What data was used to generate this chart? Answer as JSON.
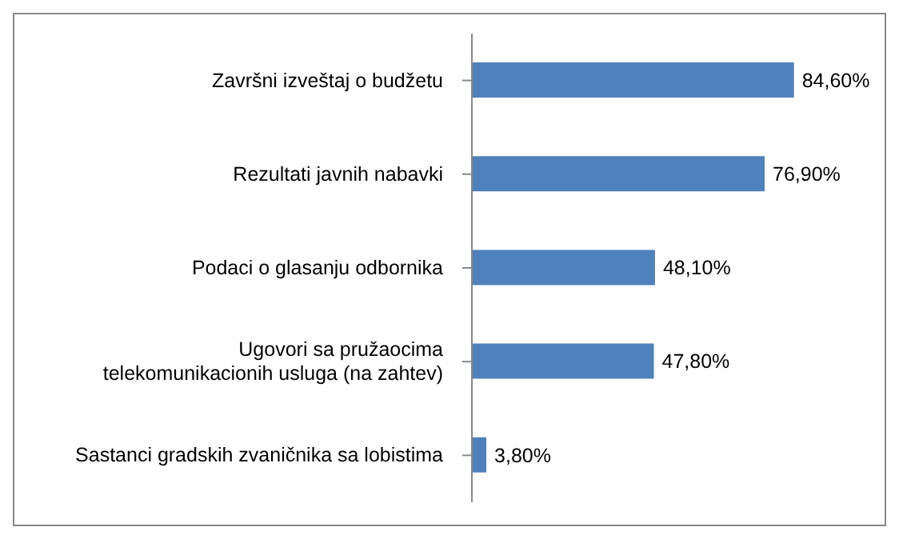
{
  "chart_data": {
    "type": "bar",
    "orientation": "horizontal",
    "categories": [
      "Završni izveštaj o budžetu",
      "Rezultati javnih nabavki",
      "Podaci o glasanju odbornika",
      "Ugovori sa pružaocima telekomunikacionih usluga (na zahtev)",
      "Sastanci gradskih zvaničnika sa lobistima"
    ],
    "values": [
      84.6,
      76.9,
      48.1,
      47.8,
      3.8
    ],
    "value_labels": [
      "84,60%",
      "76,90%",
      "48,10%",
      "47,80%",
      "3,80%"
    ],
    "color": "#4f81bd",
    "tick_labels": "y"
  }
}
